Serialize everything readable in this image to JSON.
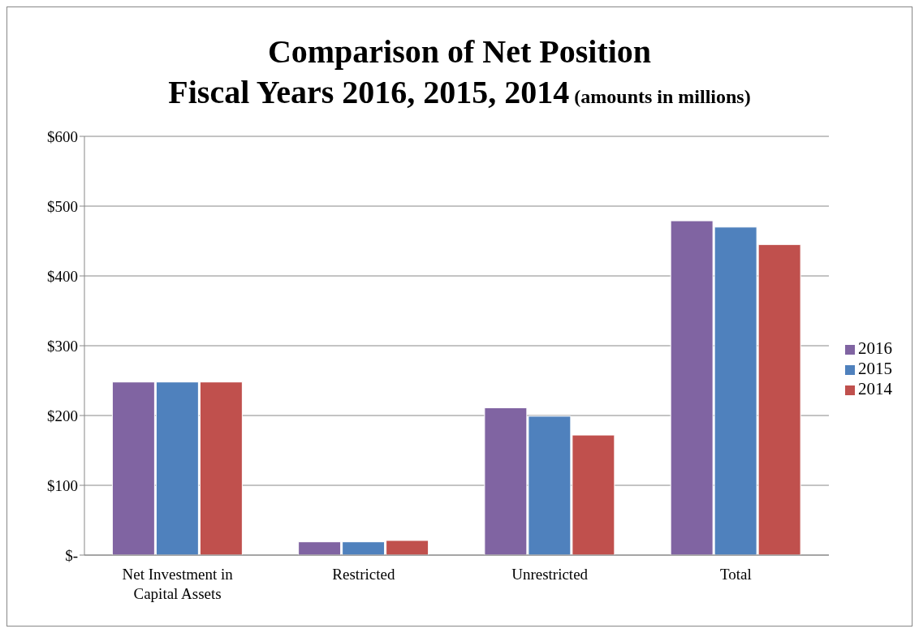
{
  "chart_data": {
    "type": "bar",
    "title": "Comparison of Net Position\nFiscal Years 2016, 2015, 2014",
    "subtitle": "(amounts in millions)",
    "categories": [
      "Net Investment in Capital Assets",
      "Restricted",
      "Unrestricted",
      "Total"
    ],
    "series": [
      {
        "name": "2016",
        "color": "#8064a2",
        "values": [
          248,
          19,
          211,
          479
        ]
      },
      {
        "name": "2015",
        "color": "#4f81bd",
        "values": [
          248,
          19,
          199,
          470
        ]
      },
      {
        "name": "2014",
        "color": "#c0504d",
        "values": [
          248,
          21,
          172,
          445
        ]
      }
    ],
    "ylim": [
      0,
      600
    ],
    "yticks": [
      {
        "value": 0,
        "label": "$-"
      },
      {
        "value": 100,
        "label": "$100"
      },
      {
        "value": 200,
        "label": "$200"
      },
      {
        "value": 300,
        "label": "$300"
      },
      {
        "value": 400,
        "label": "$400"
      },
      {
        "value": 500,
        "label": "$500"
      },
      {
        "value": 600,
        "label": "$600"
      }
    ],
    "grid": "y",
    "legend": "right"
  }
}
